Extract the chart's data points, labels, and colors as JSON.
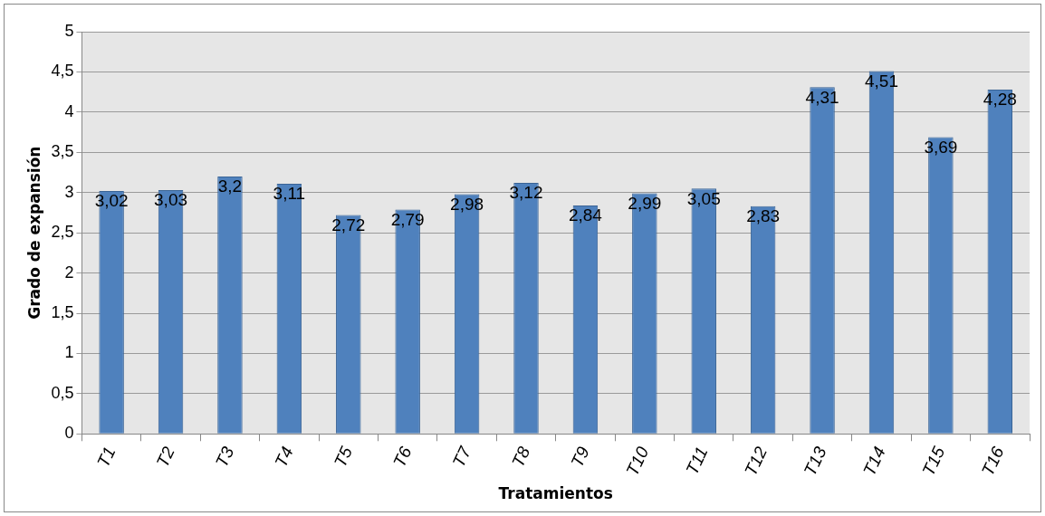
{
  "chart_data": {
    "type": "bar",
    "xlabel": "Tratamientos",
    "ylabel": "Grado de expansión",
    "categories": [
      "T1",
      "T2",
      "T3",
      "T4",
      "T5",
      "T6",
      "T7",
      "T8",
      "T9",
      "T10",
      "T11",
      "T12",
      "T13",
      "T14",
      "T15",
      "T16"
    ],
    "values": [
      3.02,
      3.03,
      3.2,
      3.11,
      2.72,
      2.79,
      2.98,
      3.12,
      2.84,
      2.99,
      3.05,
      2.83,
      4.31,
      4.51,
      3.69,
      4.28
    ],
    "value_labels": [
      "3,02",
      "3,03",
      "3,2",
      "3,11",
      "2,72",
      "2,79",
      "2,98",
      "3,12",
      "2,84",
      "2,99",
      "3,05",
      "2,83",
      "4,31",
      "4,51",
      "3,69",
      "4,28"
    ],
    "color": "#4f81bd",
    "ylim": [
      0,
      5
    ],
    "yticks": [
      0,
      {
        "value": 0.5,
        "label": "0,5"
      },
      1,
      {
        "value": 1.5,
        "label": "1,5"
      },
      2,
      {
        "value": 2.5,
        "label": "2,5"
      },
      3,
      {
        "value": 3.5,
        "label": "3,5"
      },
      4,
      {
        "value": 4.5,
        "label": "4,5"
      },
      5
    ],
    "grid": "y",
    "legend": false
  }
}
